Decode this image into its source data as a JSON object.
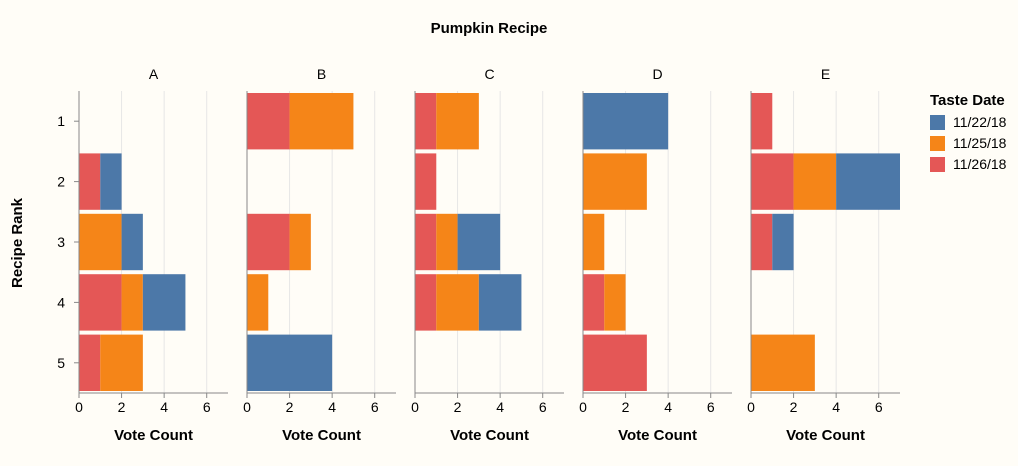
{
  "chart_data": {
    "type": "bar",
    "orientation": "horizontal",
    "stacked": true,
    "title": "Pumpkin Recipe",
    "facets": [
      "A",
      "B",
      "C",
      "D",
      "E"
    ],
    "ranks": [
      "1",
      "2",
      "3",
      "4",
      "5"
    ],
    "xlabel": "Vote Count",
    "ylabel": "Recipe Rank",
    "xlim": [
      0,
      7
    ],
    "xticks": [
      0,
      2,
      4,
      6
    ],
    "grid": true,
    "legend": {
      "title": "Taste Date",
      "placement": "right",
      "entries": [
        {
          "name": "11/22/18",
          "color": "#4c78a8"
        },
        {
          "name": "11/25/18",
          "color": "#f58518"
        },
        {
          "name": "11/26/18",
          "color": "#e45756"
        }
      ]
    },
    "stack_order": [
      "11/26/18",
      "11/25/18",
      "11/22/18"
    ],
    "data": {
      "A": {
        "1": {
          "11/26/18": 0,
          "11/25/18": 0,
          "11/22/18": 0
        },
        "2": {
          "11/26/18": 1,
          "11/25/18": 0,
          "11/22/18": 1
        },
        "3": {
          "11/26/18": 0,
          "11/25/18": 2,
          "11/22/18": 1
        },
        "4": {
          "11/26/18": 2,
          "11/25/18": 1,
          "11/22/18": 2
        },
        "5": {
          "11/26/18": 1,
          "11/25/18": 2,
          "11/22/18": 0
        }
      },
      "B": {
        "1": {
          "11/26/18": 2,
          "11/25/18": 3,
          "11/22/18": 0
        },
        "2": {
          "11/26/18": 0,
          "11/25/18": 0,
          "11/22/18": 0
        },
        "3": {
          "11/26/18": 2,
          "11/25/18": 1,
          "11/22/18": 0
        },
        "4": {
          "11/26/18": 0,
          "11/25/18": 1,
          "11/22/18": 0
        },
        "5": {
          "11/26/18": 0,
          "11/25/18": 0,
          "11/22/18": 4
        }
      },
      "C": {
        "1": {
          "11/26/18": 1,
          "11/25/18": 2,
          "11/22/18": 0
        },
        "2": {
          "11/26/18": 1,
          "11/25/18": 0,
          "11/22/18": 0
        },
        "3": {
          "11/26/18": 1,
          "11/25/18": 1,
          "11/22/18": 2
        },
        "4": {
          "11/26/18": 1,
          "11/25/18": 2,
          "11/22/18": 2
        },
        "5": {
          "11/26/18": 0,
          "11/25/18": 0,
          "11/22/18": 0
        }
      },
      "D": {
        "1": {
          "11/26/18": 0,
          "11/25/18": 0,
          "11/22/18": 4
        },
        "2": {
          "11/26/18": 0,
          "11/25/18": 3,
          "11/22/18": 0
        },
        "3": {
          "11/26/18": 0,
          "11/25/18": 1,
          "11/22/18": 0
        },
        "4": {
          "11/26/18": 1,
          "11/25/18": 1,
          "11/22/18": 0
        },
        "5": {
          "11/26/18": 3,
          "11/25/18": 0,
          "11/22/18": 0
        }
      },
      "E": {
        "1": {
          "11/26/18": 1,
          "11/25/18": 0,
          "11/22/18": 0
        },
        "2": {
          "11/26/18": 2,
          "11/25/18": 2,
          "11/22/18": 3
        },
        "3": {
          "11/26/18": 1,
          "11/25/18": 0,
          "11/22/18": 1
        },
        "4": {
          "11/26/18": 0,
          "11/25/18": 0,
          "11/22/18": 0
        },
        "5": {
          "11/26/18": 0,
          "11/25/18": 3,
          "11/22/18": 0
        }
      }
    }
  }
}
